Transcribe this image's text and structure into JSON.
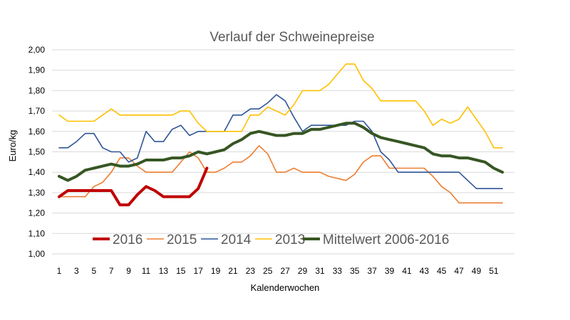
{
  "chart_data": {
    "type": "line",
    "title": "Verlauf der Schweinepreise",
    "xlabel": "Kalenderwochen",
    "ylabel": "Euro/kg",
    "ylim": [
      1.0,
      2.0
    ],
    "xlim": [
      1,
      52
    ],
    "y_ticks": [
      "1,00",
      "1,10",
      "1,20",
      "1,30",
      "1,40",
      "1,50",
      "1,60",
      "1,70",
      "1,80",
      "1,90",
      "2,00"
    ],
    "x_ticks": [
      "1",
      "3",
      "5",
      "7",
      "9",
      "11",
      "13",
      "15",
      "17",
      "19",
      "21",
      "23",
      "25",
      "27",
      "29",
      "31",
      "33",
      "35",
      "37",
      "39",
      "41",
      "43",
      "45",
      "47",
      "49",
      "51"
    ],
    "grid": "horizontal",
    "legend_position": "bottom-inside",
    "series": [
      {
        "name": "2016",
        "color": "#c00000",
        "width": 4,
        "x": [
          1,
          2,
          3,
          4,
          5,
          6,
          7,
          8,
          9,
          10,
          11,
          12,
          13,
          14,
          15,
          16,
          17,
          18
        ],
        "values": [
          1.28,
          1.31,
          1.31,
          1.31,
          1.31,
          1.31,
          1.31,
          1.24,
          1.24,
          1.29,
          1.33,
          1.31,
          1.28,
          1.28,
          1.28,
          1.28,
          1.32,
          1.42
        ]
      },
      {
        "name": "2015",
        "color": "#ed7d31",
        "width": 1.6,
        "x": [
          1,
          2,
          3,
          4,
          5,
          6,
          7,
          8,
          9,
          10,
          11,
          12,
          13,
          14,
          15,
          16,
          17,
          18,
          19,
          20,
          21,
          22,
          23,
          24,
          25,
          26,
          27,
          28,
          29,
          30,
          31,
          32,
          33,
          34,
          35,
          36,
          37,
          38,
          39,
          40,
          41,
          42,
          43,
          44,
          45,
          46,
          47,
          48,
          49,
          50,
          51,
          52
        ],
        "values": [
          1.28,
          1.28,
          1.28,
          1.28,
          1.33,
          1.35,
          1.4,
          1.47,
          1.47,
          1.43,
          1.4,
          1.4,
          1.4,
          1.4,
          1.45,
          1.5,
          1.47,
          1.4,
          1.4,
          1.42,
          1.45,
          1.45,
          1.48,
          1.53,
          1.49,
          1.4,
          1.4,
          1.42,
          1.4,
          1.4,
          1.4,
          1.38,
          1.37,
          1.36,
          1.39,
          1.45,
          1.48,
          1.48,
          1.42,
          1.42,
          1.42,
          1.42,
          1.42,
          1.38,
          1.33,
          1.3,
          1.25,
          1.25,
          1.25,
          1.25,
          1.25,
          1.25
        ]
      },
      {
        "name": "2014",
        "color": "#2f5597",
        "width": 1.6,
        "x": [
          1,
          2,
          3,
          4,
          5,
          6,
          7,
          8,
          9,
          10,
          11,
          12,
          13,
          14,
          15,
          16,
          17,
          18,
          19,
          20,
          21,
          22,
          23,
          24,
          25,
          26,
          27,
          28,
          29,
          30,
          31,
          32,
          33,
          34,
          35,
          36,
          37,
          38,
          39,
          40,
          41,
          42,
          43,
          44,
          45,
          46,
          47,
          48,
          49,
          50,
          51,
          52
        ],
        "values": [
          1.52,
          1.52,
          1.55,
          1.59,
          1.59,
          1.52,
          1.5,
          1.5,
          1.45,
          1.47,
          1.6,
          1.55,
          1.55,
          1.61,
          1.63,
          1.58,
          1.6,
          1.6,
          1.6,
          1.6,
          1.68,
          1.68,
          1.71,
          1.71,
          1.74,
          1.78,
          1.75,
          1.67,
          1.6,
          1.63,
          1.63,
          1.63,
          1.63,
          1.63,
          1.65,
          1.65,
          1.6,
          1.5,
          1.46,
          1.4,
          1.4,
          1.4,
          1.4,
          1.4,
          1.4,
          1.4,
          1.4,
          1.36,
          1.32,
          1.32,
          1.32,
          1.32
        ]
      },
      {
        "name": "2013",
        "color": "#ffc000",
        "width": 1.6,
        "x": [
          1,
          2,
          3,
          4,
          5,
          6,
          7,
          8,
          9,
          10,
          11,
          12,
          13,
          14,
          15,
          16,
          17,
          18,
          19,
          20,
          21,
          22,
          23,
          24,
          25,
          26,
          27,
          28,
          29,
          30,
          31,
          32,
          33,
          34,
          35,
          36,
          37,
          38,
          39,
          40,
          41,
          42,
          43,
          44,
          45,
          46,
          47,
          48,
          49,
          50,
          51,
          52
        ],
        "values": [
          1.68,
          1.65,
          1.65,
          1.65,
          1.65,
          1.68,
          1.71,
          1.68,
          1.68,
          1.68,
          1.68,
          1.68,
          1.68,
          1.68,
          1.7,
          1.7,
          1.64,
          1.6,
          1.6,
          1.6,
          1.6,
          1.6,
          1.68,
          1.68,
          1.72,
          1.7,
          1.68,
          1.73,
          1.8,
          1.8,
          1.8,
          1.83,
          1.88,
          1.93,
          1.93,
          1.85,
          1.81,
          1.75,
          1.75,
          1.75,
          1.75,
          1.75,
          1.7,
          1.63,
          1.66,
          1.64,
          1.66,
          1.72,
          1.66,
          1.6,
          1.52,
          1.52
        ]
      },
      {
        "name": "Mittelwert 2006-2016",
        "color": "#375623",
        "width": 4,
        "x": [
          1,
          2,
          3,
          4,
          5,
          6,
          7,
          8,
          9,
          10,
          11,
          12,
          13,
          14,
          15,
          16,
          17,
          18,
          19,
          20,
          21,
          22,
          23,
          24,
          25,
          26,
          27,
          28,
          29,
          30,
          31,
          32,
          33,
          34,
          35,
          36,
          37,
          38,
          39,
          40,
          41,
          42,
          43,
          44,
          45,
          46,
          47,
          48,
          49,
          50,
          51,
          52
        ],
        "values": [
          1.38,
          1.36,
          1.38,
          1.41,
          1.42,
          1.43,
          1.44,
          1.43,
          1.43,
          1.44,
          1.46,
          1.46,
          1.46,
          1.47,
          1.47,
          1.48,
          1.5,
          1.49,
          1.5,
          1.51,
          1.54,
          1.56,
          1.59,
          1.6,
          1.59,
          1.58,
          1.58,
          1.59,
          1.59,
          1.61,
          1.61,
          1.62,
          1.63,
          1.64,
          1.64,
          1.62,
          1.59,
          1.57,
          1.56,
          1.55,
          1.54,
          1.53,
          1.52,
          1.49,
          1.48,
          1.48,
          1.47,
          1.47,
          1.46,
          1.45,
          1.42,
          1.4
        ]
      }
    ]
  }
}
